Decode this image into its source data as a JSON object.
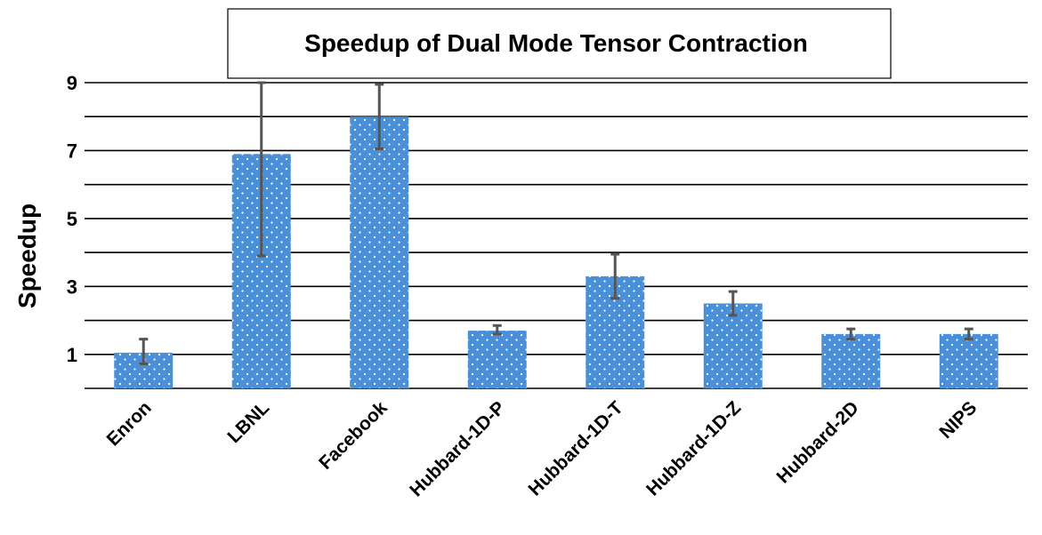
{
  "chart_data": {
    "type": "bar",
    "title": "Speedup of Dual Mode Tensor Contraction",
    "xlabel": "",
    "ylabel": "Speedup",
    "categories": [
      "Enron",
      "LBNL",
      "Facebook",
      "Hubbard-1D-P",
      "Hubbard-1D-T",
      "Hubbard-1D-Z",
      "Hubbard-2D",
      "NIPS"
    ],
    "values": [
      1.05,
      6.9,
      8.0,
      1.7,
      3.3,
      2.5,
      1.6,
      1.6
    ],
    "error_low": [
      0.72,
      3.9,
      7.05,
      1.6,
      2.65,
      2.15,
      1.45,
      1.45
    ],
    "error_high": [
      1.45,
      9.0,
      8.95,
      1.85,
      3.95,
      2.85,
      1.75,
      1.75
    ],
    "ylim": [
      0,
      9
    ],
    "yticks": [
      1,
      3,
      5,
      7,
      9
    ],
    "gridlines": [
      0,
      1,
      2,
      3,
      4,
      5,
      6,
      7,
      8,
      9
    ],
    "grid": true,
    "legend": "none",
    "colors": {
      "bar": "#4a90d9",
      "bar_dots": "#ffffff",
      "error_bar": "#555555",
      "grid": "#000000"
    }
  }
}
